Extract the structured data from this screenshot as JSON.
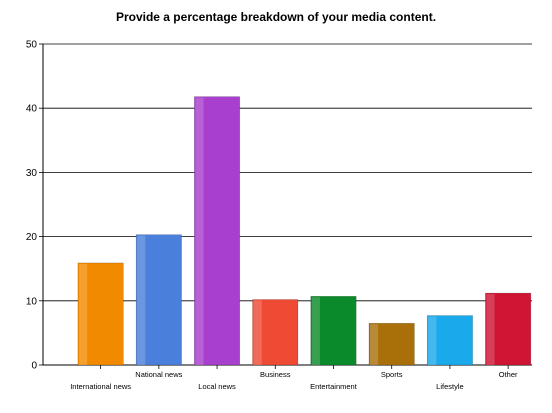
{
  "chart_data": {
    "type": "bar",
    "title": "Provide a percentage breakdown of your media content.",
    "xlabel": "",
    "ylabel": "",
    "categories": [
      "International news",
      "National news",
      "Local news",
      "Business",
      "Entertainment",
      "Sports",
      "Lifestyle",
      "Other"
    ],
    "values": [
      15.9,
      20.3,
      41.8,
      10.2,
      10.7,
      6.5,
      7.7,
      11.2
    ],
    "colors": [
      "#f28a00",
      "#4b7fdc",
      "#a93fcf",
      "#ef4a34",
      "#0a8a2a",
      "#a9700a",
      "#1aa9ea",
      "#cf1434"
    ],
    "ylim": [
      0,
      50
    ],
    "yticks": [
      0,
      10,
      20,
      30,
      40,
      50
    ],
    "grid": true,
    "legend": "none"
  }
}
